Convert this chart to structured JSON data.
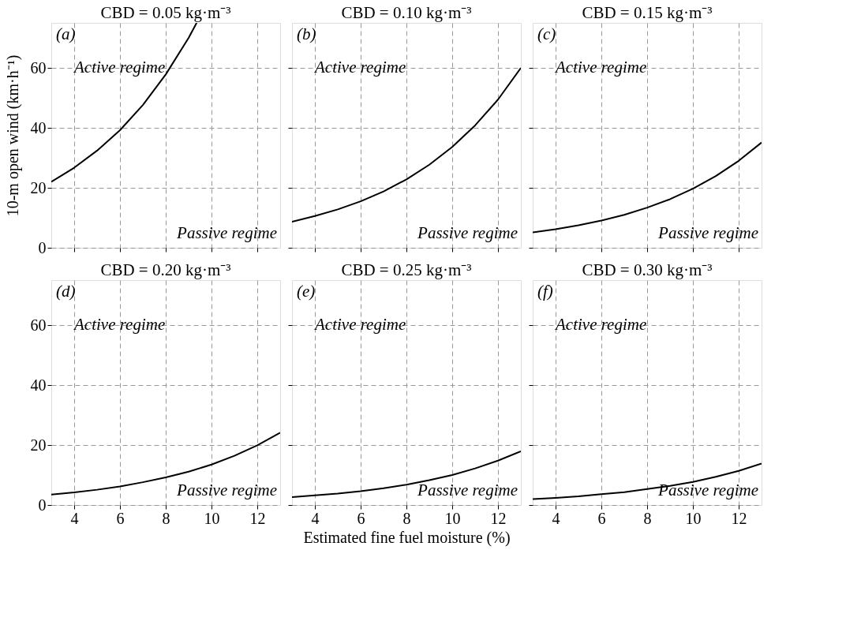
{
  "chart_data": [
    {
      "type": "line",
      "title": "CBD = 0.05 kg·m⁻³",
      "ylabel": "10-m open wind (km·h⁻¹)",
      "x": [
        3,
        4,
        5,
        6,
        7,
        8,
        9,
        9.35
      ],
      "series": [
        {
          "color": "#000000",
          "values": [
            22,
            26.7,
            32.4,
            39.2,
            47.6,
            57.8,
            70.0,
            75
          ]
        }
      ],
      "xlim": [
        3,
        13
      ],
      "xticks": [
        4,
        6,
        8,
        10,
        12
      ],
      "ylim": [
        0,
        75
      ],
      "yticks": [
        0,
        20,
        40,
        60
      ],
      "grid": true,
      "line_style": "solid",
      "tick_labels": "y",
      "annotations": [
        "(a)",
        "Active regime",
        "Passive regime"
      ]
    },
    {
      "type": "line",
      "title": "CBD = 0.10 kg·m⁻³",
      "x": [
        3,
        4,
        5,
        6,
        7,
        8,
        9,
        10,
        11,
        12,
        13
      ],
      "series": [
        {
          "color": "#000000",
          "values": [
            8.7,
            10.6,
            12.8,
            15.5,
            18.8,
            22.8,
            27.7,
            33.6,
            40.8,
            49.4,
            60.0
          ]
        }
      ],
      "xlim": [
        3,
        13
      ],
      "xticks": [
        4,
        6,
        8,
        10,
        12
      ],
      "ylim": [
        0,
        75
      ],
      "yticks": [
        0,
        20,
        40,
        60
      ],
      "grid": true,
      "line_style": "solid",
      "tick_labels": false,
      "annotations": [
        "(b)",
        "Active regime",
        "Passive regime"
      ]
    },
    {
      "type": "line",
      "title": "CBD = 0.15 kg·m⁻³",
      "x": [
        3,
        4,
        5,
        6,
        7,
        8,
        9,
        10,
        11,
        12,
        13
      ],
      "series": [
        {
          "color": "#000000",
          "values": [
            5.1,
            6.2,
            7.5,
            9.1,
            11.0,
            13.4,
            16.2,
            19.7,
            23.9,
            29.0,
            35.1
          ]
        }
      ],
      "xlim": [
        3,
        13
      ],
      "xticks": [
        4,
        6,
        8,
        10,
        12
      ],
      "ylim": [
        0,
        75
      ],
      "yticks": [
        0,
        20,
        40,
        60
      ],
      "grid": true,
      "line_style": "solid",
      "tick_labels": false,
      "annotations": [
        "(c)",
        "Active regime",
        "Passive regime"
      ]
    },
    {
      "type": "line",
      "title": "CBD = 0.20 kg·m⁻³",
      "x": [
        3,
        4,
        5,
        6,
        7,
        8,
        9,
        10,
        11,
        12,
        13
      ],
      "series": [
        {
          "color": "#000000",
          "values": [
            3.5,
            4.2,
            5.1,
            6.2,
            7.6,
            9.2,
            11.1,
            13.5,
            16.4,
            19.9,
            24.1
          ]
        }
      ],
      "xlim": [
        3,
        13
      ],
      "xticks": [
        4,
        6,
        8,
        10,
        12
      ],
      "ylim": [
        0,
        75
      ],
      "yticks": [
        0,
        20,
        40,
        60
      ],
      "grid": true,
      "line_style": "solid",
      "annotations": [
        "(d)",
        "Active regime",
        "Passive regime"
      ]
    },
    {
      "type": "line",
      "title": "CBD = 0.25 kg·m⁻³",
      "xlabel": "Estimated fine fuel moisture (%)",
      "x": [
        3,
        4,
        5,
        6,
        7,
        8,
        9,
        10,
        11,
        12,
        13
      ],
      "series": [
        {
          "color": "#000000",
          "values": [
            2.6,
            3.2,
            3.8,
            4.6,
            5.6,
            6.8,
            8.3,
            10.0,
            12.2,
            14.8,
            17.9
          ]
        }
      ],
      "xlim": [
        3,
        13
      ],
      "xticks": [
        4,
        6,
        8,
        10,
        12
      ],
      "ylim": [
        0,
        75
      ],
      "yticks": [
        0,
        20,
        40,
        60
      ],
      "grid": true,
      "line_style": "solid",
      "tick_labels": "x",
      "annotations": [
        "(e)",
        "Active regime",
        "Passive regime"
      ]
    },
    {
      "type": "line",
      "title": "CBD = 0.30 kg·m⁻³",
      "x": [
        3,
        4,
        5,
        6,
        7,
        8,
        9,
        10,
        11,
        12,
        13
      ],
      "series": [
        {
          "color": "#000000",
          "values": [
            2.0,
            2.4,
            2.9,
            3.6,
            4.3,
            5.3,
            6.4,
            7.7,
            9.4,
            11.4,
            13.8
          ]
        }
      ],
      "xlim": [
        3,
        13
      ],
      "xticks": [
        4,
        6,
        8,
        10,
        12
      ],
      "ylim": [
        0,
        75
      ],
      "yticks": [
        0,
        20,
        40,
        60
      ],
      "grid": true,
      "line_style": "solid",
      "tick_labels": "x",
      "annotations": [
        "(f)",
        "Active regime",
        "Passive regime"
      ]
    }
  ]
}
